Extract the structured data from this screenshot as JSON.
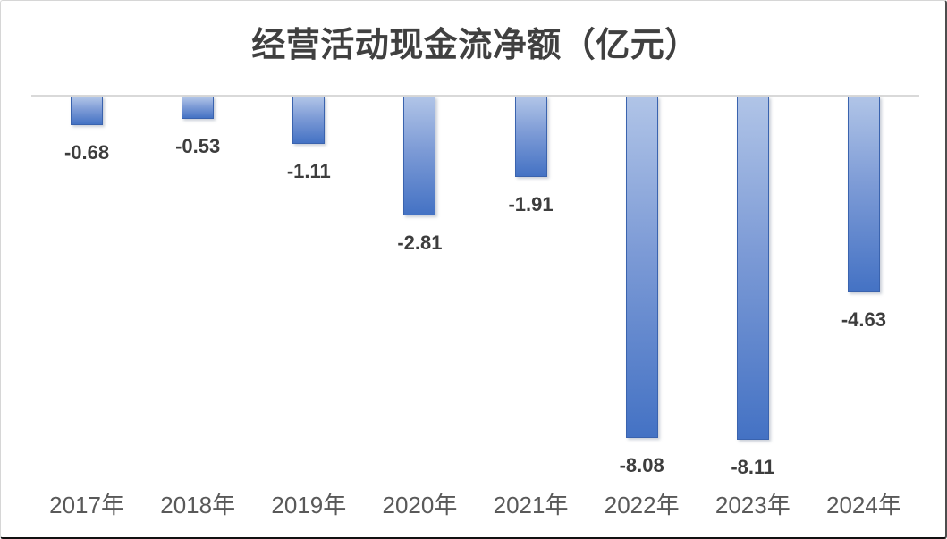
{
  "chart_data": {
    "type": "bar",
    "title": "经营活动现金流净额（亿元）",
    "categories": [
      "2017年",
      "2018年",
      "2019年",
      "2020年",
      "2021年",
      "2022年",
      "2023年",
      "2024年"
    ],
    "values": [
      -0.68,
      -0.53,
      -1.11,
      -2.81,
      -1.91,
      -8.08,
      -8.11,
      -4.63
    ],
    "data_labels": [
      "-0.68",
      "-0.53",
      "-1.11",
      "-2.81",
      "-1.91",
      "-8.08",
      "-8.11",
      "-4.63"
    ],
    "xlabel": "",
    "ylabel": "",
    "ylim": [
      -8.5,
      0
    ],
    "grid": false,
    "legend": "none",
    "data_label_position": "outside-end-below",
    "colors": {
      "bar_gradient_top": "#b0c4e7",
      "bar_gradient_mid": "#7d9bd6",
      "bar_gradient_bottom": "#4472c4",
      "bar_border": "#3a63ae",
      "axis_line": "#d9d9d9",
      "title_text": "#404040",
      "data_label_text": "#3d3d3d",
      "tick_label_text": "#595959",
      "background": "#ffffff"
    }
  }
}
